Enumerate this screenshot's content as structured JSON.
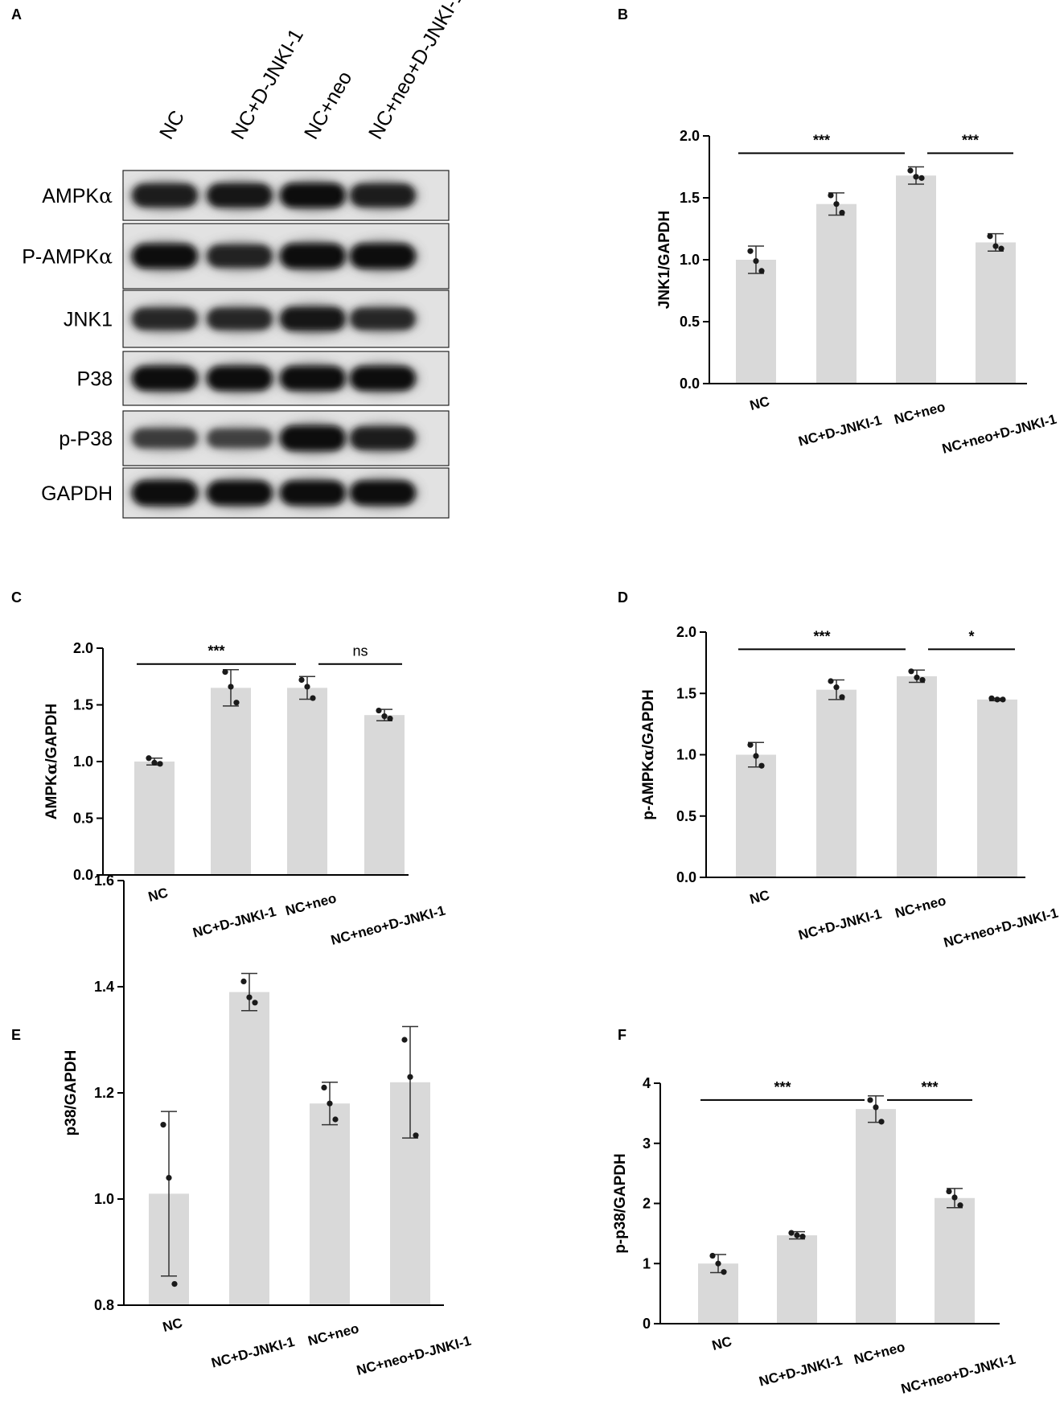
{
  "panel_a": {
    "letter": "A",
    "lanes": [
      "NC",
      "NC+D-JNKI-1",
      "NC+neo",
      "NC+neo+D-JNKI-1"
    ],
    "blots": [
      {
        "label": "AMPKα",
        "intensity": [
          0.85,
          0.9,
          0.95,
          0.85
        ]
      },
      {
        "label": "P-AMPKα",
        "intensity": [
          0.95,
          0.8,
          1.0,
          1.0
        ]
      },
      {
        "label": "JNK1",
        "intensity": [
          0.75,
          0.75,
          0.9,
          0.75
        ]
      },
      {
        "label": "P38",
        "intensity": [
          0.95,
          0.95,
          0.95,
          0.95
        ]
      },
      {
        "label": "p-P38",
        "intensity": [
          0.55,
          0.5,
          1.0,
          0.85
        ]
      },
      {
        "label": "GAPDH",
        "intensity": [
          1.0,
          0.95,
          0.95,
          0.95
        ]
      }
    ]
  },
  "chart_data": [
    {
      "panel": "B",
      "type": "bar",
      "categories": [
        "NC",
        "NC+D-JNKI-1",
        "NC+neo",
        "NC+neo+D-JNKI-1"
      ],
      "values": [
        1.0,
        1.45,
        1.68,
        1.14
      ],
      "errors": [
        0.11,
        0.09,
        0.07,
        0.07
      ],
      "points": [
        [
          1.07,
          0.99,
          0.91
        ],
        [
          1.52,
          1.45,
          1.38
        ],
        [
          1.72,
          1.67,
          1.66
        ],
        [
          1.19,
          1.11,
          1.09
        ]
      ],
      "ylabel": "JNK1/GAPDH",
      "ylim": [
        0,
        2.0
      ],
      "yticks": [
        "0.0",
        "0.5",
        "1.0",
        "1.5",
        "2.0"
      ],
      "comparisons": [
        {
          "from": 0,
          "to": 2,
          "label": "***"
        },
        {
          "from": 2,
          "to": 3,
          "label": "***"
        }
      ]
    },
    {
      "panel": "C",
      "type": "bar",
      "categories": [
        "NC",
        "NC+D-JNKI-1",
        "NC+neo",
        "NC+neo+D-JNKI-1"
      ],
      "values": [
        1.0,
        1.65,
        1.65,
        1.41
      ],
      "errors": [
        0.03,
        0.16,
        0.1,
        0.05
      ],
      "points": [
        [
          1.03,
          0.99,
          0.98
        ],
        [
          1.79,
          1.66,
          1.52
        ],
        [
          1.72,
          1.66,
          1.56
        ],
        [
          1.45,
          1.4,
          1.38
        ]
      ],
      "ylabel": "AMPKα/GAPDH",
      "ylim": [
        0,
        2.0
      ],
      "yticks": [
        "0.0",
        "0.5",
        "1.0",
        "1.5",
        "2.0"
      ],
      "comparisons": [
        {
          "from": 0,
          "to": 2,
          "label": "***"
        },
        {
          "from": 2,
          "to": 3,
          "label": "ns"
        }
      ]
    },
    {
      "panel": "D",
      "type": "bar",
      "categories": [
        "NC",
        "NC+D-JNKI-1",
        "NC+neo",
        "NC+neo+D-JNKI-1"
      ],
      "values": [
        1.0,
        1.53,
        1.64,
        1.45
      ],
      "errors": [
        0.1,
        0.08,
        0.05,
        0.01
      ],
      "points": [
        [
          1.08,
          0.99,
          0.91
        ],
        [
          1.6,
          1.55,
          1.47
        ],
        [
          1.68,
          1.63,
          1.61
        ],
        [
          1.46,
          1.45,
          1.45
        ]
      ],
      "ylabel": "p-AMPKα/GAPDH",
      "ylim": [
        0,
        2.0
      ],
      "yticks": [
        "0.0",
        "0.5",
        "1.0",
        "1.5",
        "2.0"
      ],
      "comparisons": [
        {
          "from": 0,
          "to": 2,
          "label": "***"
        },
        {
          "from": 2,
          "to": 3,
          "label": "*"
        }
      ]
    },
    {
      "panel": "E",
      "type": "bar",
      "categories": [
        "NC",
        "NC+D-JNKI-1",
        "NC+neo",
        "NC+neo+D-JNKI-1"
      ],
      "values": [
        1.01,
        1.39,
        1.18,
        1.22
      ],
      "errors": [
        0.155,
        0.035,
        0.04,
        0.105
      ],
      "points": [
        [
          1.14,
          1.04,
          0.84
        ],
        [
          1.41,
          1.38,
          1.37
        ],
        [
          1.21,
          1.18,
          1.15
        ],
        [
          1.3,
          1.23,
          1.12
        ]
      ],
      "ylabel": "p38/GAPDH",
      "ylim": [
        0.8,
        1.6
      ],
      "yticks": [
        "0.8",
        "1.0",
        "1.2",
        "1.4",
        "1.6"
      ],
      "comparisons": []
    },
    {
      "panel": "F",
      "type": "bar",
      "categories": [
        "NC",
        "NC+D-JNKI-1",
        "NC+neo",
        "NC+neo+D-JNKI-1"
      ],
      "values": [
        1.0,
        1.47,
        3.57,
        2.09
      ],
      "errors": [
        0.15,
        0.06,
        0.22,
        0.16
      ],
      "points": [
        [
          1.13,
          1.0,
          0.86
        ],
        [
          1.51,
          1.47,
          1.45
        ],
        [
          3.72,
          3.6,
          3.36
        ],
        [
          2.2,
          2.1,
          1.97
        ]
      ],
      "ylabel": "p-p38/GAPDH",
      "ylim": [
        0,
        4
      ],
      "yticks": [
        "0",
        "1",
        "2",
        "3",
        "4"
      ],
      "comparisons": [
        {
          "from": 0,
          "to": 2,
          "label": "***"
        },
        {
          "from": 2,
          "to": 3,
          "label": "***"
        }
      ]
    }
  ],
  "colors": {
    "bar": "#d9d9d9",
    "axis": "#000000",
    "point": "#1a1a1a"
  }
}
